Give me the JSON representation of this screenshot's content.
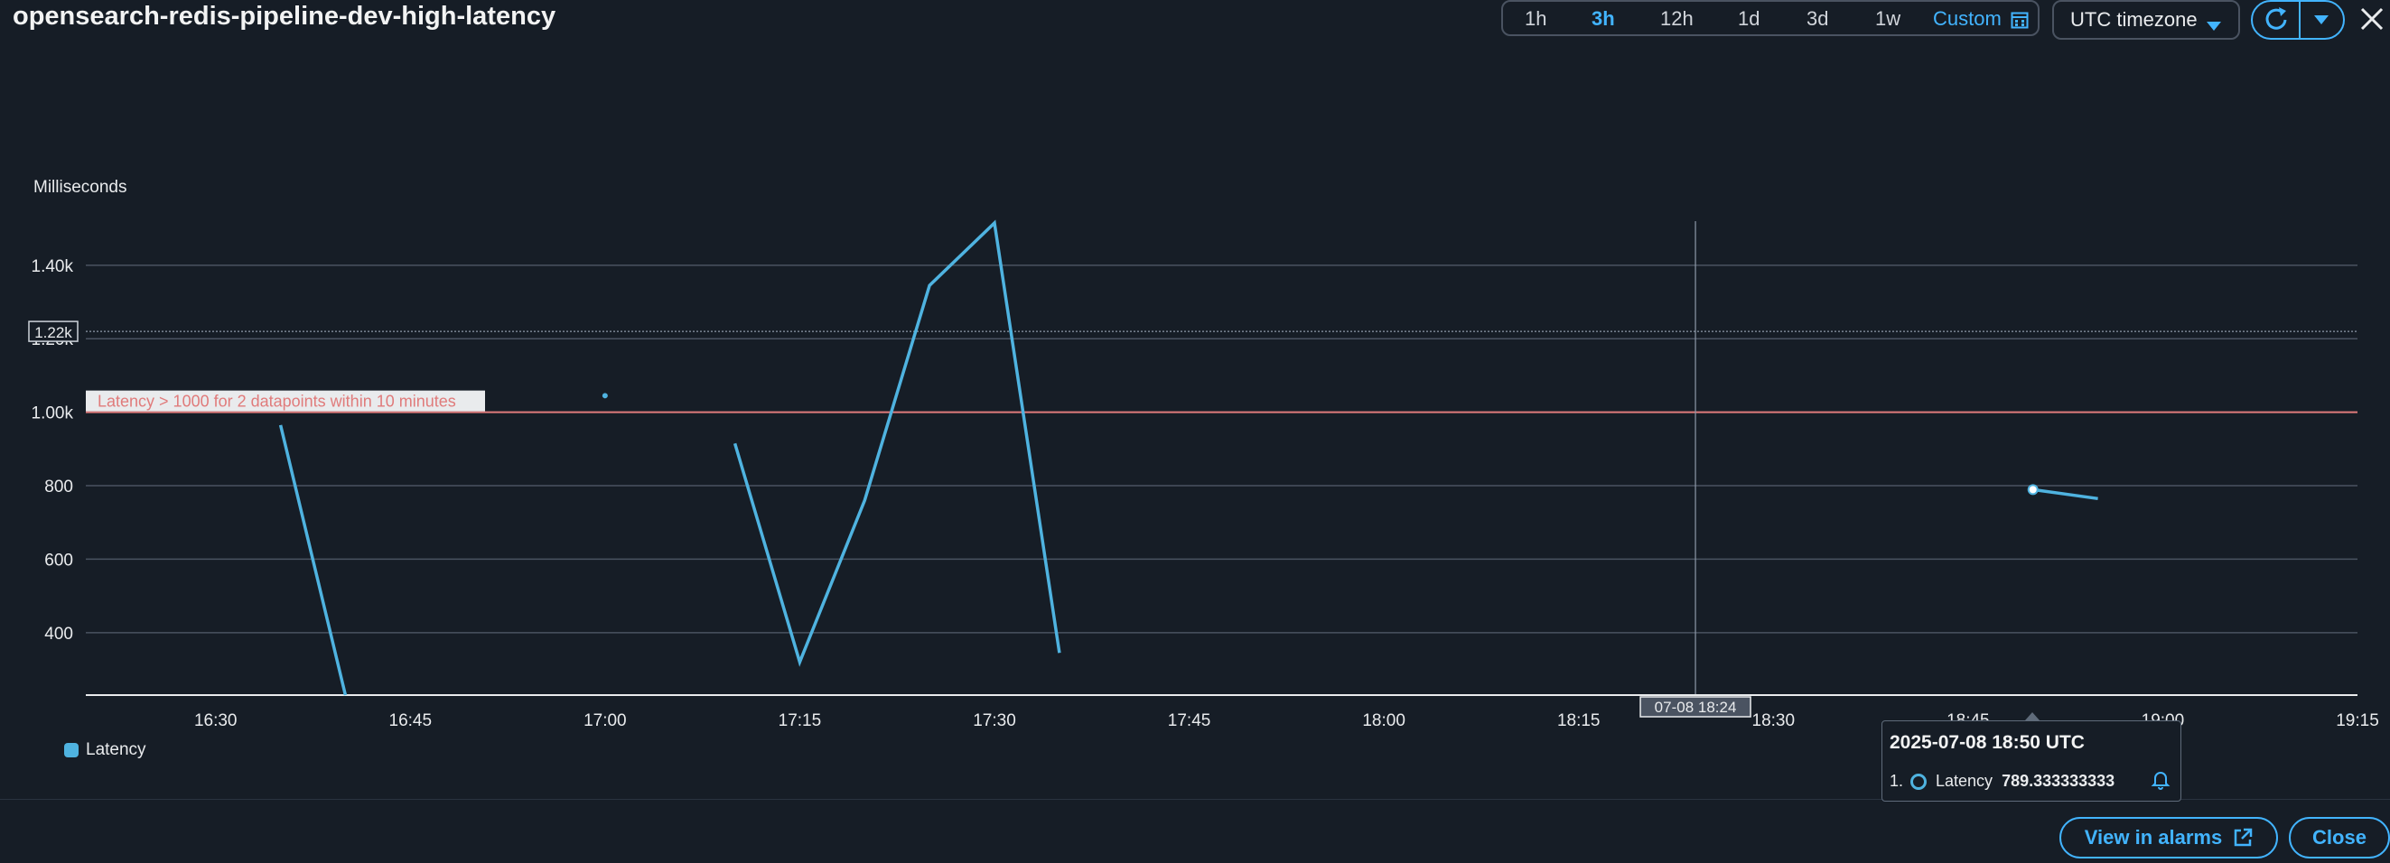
{
  "page": {
    "title": "opensearch-redis-pipeline-dev-high-latency"
  },
  "time_range": {
    "options": [
      "1h",
      "3h",
      "12h",
      "1d",
      "3d",
      "1w"
    ],
    "selected": "3h",
    "custom_label": "Custom"
  },
  "timezone": {
    "label": "UTC timezone"
  },
  "legend": {
    "label": "Latency",
    "color": "#4fb3e0"
  },
  "tooltip": {
    "time": "2025-07-08 18:50 UTC",
    "index": "1.",
    "series": "Latency",
    "value": "789.333333333"
  },
  "buttons": {
    "view_in_alarms": "View in alarms",
    "close": "Close"
  },
  "colors": {
    "accent": "#42b4ff",
    "series": "#4fb3e0",
    "threshold": "#e07b7b",
    "background": "#161d26"
  },
  "chart_data": {
    "type": "line",
    "ylabel": "Milliseconds",
    "yticks": [
      "400",
      "600",
      "800",
      "1.00k",
      "1.20k",
      "1.40k"
    ],
    "ytick_values": [
      400,
      600,
      800,
      1000,
      1200,
      1400
    ],
    "ylim": [
      230,
      1520
    ],
    "xticks": [
      "16:30",
      "16:45",
      "17:00",
      "17:15",
      "17:30",
      "17:45",
      "18:00",
      "18:15",
      "18:30",
      "18:45",
      "19:00",
      "19:15"
    ],
    "xtick_minutes": [
      990,
      1005,
      1020,
      1035,
      1050,
      1065,
      1080,
      1095,
      1110,
      1125,
      1140,
      1155
    ],
    "xlim_minutes": [
      980,
      1155
    ],
    "series": [
      {
        "name": "Latency",
        "segments": [
          [
            [
              995,
              965
            ],
            [
              1000,
              230
            ]
          ],
          [
            [
              1020,
              1045
            ]
          ],
          [
            [
              1030,
              915
            ],
            [
              1035,
              320
            ],
            [
              1040,
              760
            ],
            [
              1045,
              1345
            ],
            [
              1050,
              1515
            ],
            [
              1055,
              345
            ]
          ],
          [
            [
              1130,
              789.333333333
            ],
            [
              1135,
              765
            ]
          ]
        ]
      }
    ],
    "threshold": {
      "value": 1000,
      "label": "Latency > 1000 for 2 datapoints within 10 minutes"
    },
    "reference_line": {
      "value": 1220,
      "label": "1.22k"
    },
    "crosshair": {
      "x_minutes": 1104,
      "label": "07-08 18:24"
    },
    "highlight_point": {
      "x_minutes": 1130,
      "y": 789.333333333
    }
  }
}
